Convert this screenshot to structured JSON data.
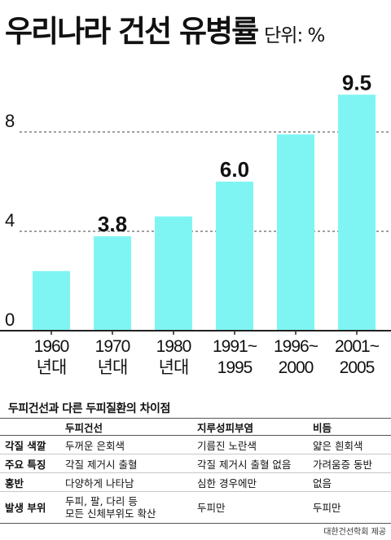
{
  "title": "우리나라 건선 유병률",
  "unit_label": "단위: %",
  "colors": {
    "bar": "#7ff5f3",
    "grid": "#666666",
    "axis": "#222222"
  },
  "chart_data": {
    "type": "bar",
    "title": "우리나라 건선 유병률",
    "ylabel": "단위: %",
    "ylim": [
      0,
      10.4
    ],
    "yticks": [
      0,
      4,
      8
    ],
    "grid": "dashed at 4 and 8",
    "categories": [
      [
        "1960",
        "년대"
      ],
      [
        "1970",
        "년대"
      ],
      [
        "1980",
        "년대"
      ],
      [
        "1991~",
        "1995"
      ],
      [
        "1996~",
        "2000"
      ],
      [
        "2001~",
        "2005"
      ]
    ],
    "values": [
      2.4,
      3.8,
      4.6,
      6.0,
      7.9,
      9.5
    ],
    "value_labels": [
      "",
      "3.8",
      "",
      "6.0",
      "",
      "9.5"
    ]
  },
  "table": {
    "title": "두피건선과 다른 두피질환의 차이점",
    "headers": [
      "",
      "두피건선",
      "지루성피부염",
      "비듬"
    ],
    "rows": [
      {
        "label": "각질 색깔",
        "cells": [
          "두꺼운 은회색",
          "기름진 노란색",
          "얇은 흰회색"
        ]
      },
      {
        "label": "주요 특징",
        "cells": [
          "각질 제거시 출혈",
          "각질 제거시 출혈 없음",
          "가려움증 동반"
        ]
      },
      {
        "label": "홍반",
        "cells": [
          "다양하게 나타남",
          "심한 경우에만",
          "없음"
        ]
      },
      {
        "label": "발생 부위",
        "cells": [
          "두피, 팔, 다리 등",
          "두피만",
          "두피만"
        ],
        "cell0_line2": "모든 신체부위도 확산"
      }
    ]
  },
  "credit": "대한건선학회 제공"
}
